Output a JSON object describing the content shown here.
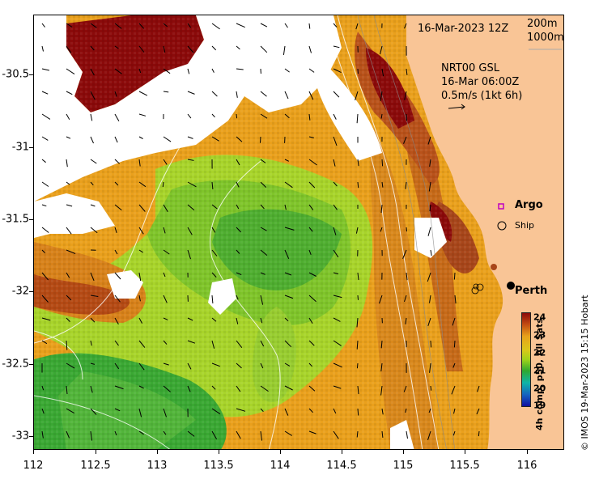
{
  "map": {
    "date_label": "16-Mar-2023 12Z",
    "contour_legend": [
      "200m",
      "1000m"
    ],
    "current_info": [
      "NRT00 GSL",
      "16-Mar 06:00Z",
      "0.5m/s (1kt 6h)"
    ],
    "legend": {
      "argo_label": "Argo",
      "ship_label": "Ship"
    },
    "city_label": "Perth",
    "credit": "© IMOS 19-Mar-2023 15:15 Hobart",
    "colorbar_title": "4h comp, p50, All Sats",
    "colorbar_ticks": [
      "24",
      "23",
      "22",
      "21",
      "20",
      "19"
    ],
    "lon_ticks": [
      "112",
      "112.5",
      "113",
      "113.5",
      "114",
      "114.5",
      "115",
      "115.5",
      "116"
    ],
    "lat_ticks": [
      "-30.5",
      "-31",
      "-31.5",
      "-32",
      "-32.5",
      "-33"
    ],
    "colors": {
      "land": "#f9c596",
      "sst_24": "#8b0a0a",
      "sst_23": "#e8a21a",
      "sst_22": "#9ed21a",
      "sst_21": "#2fa82f",
      "sst_20": "#0fb4a8",
      "sst_19": "#1010a0"
    }
  }
}
